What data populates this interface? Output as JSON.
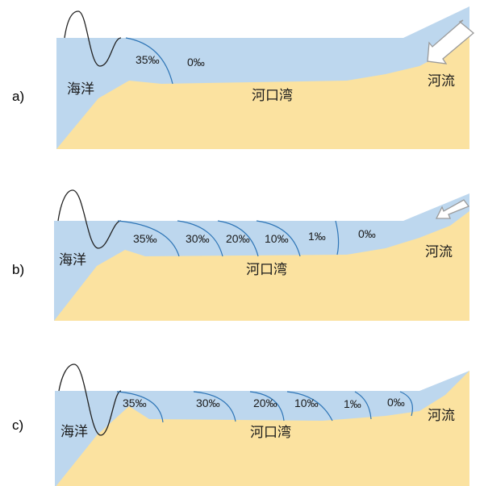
{
  "colors": {
    "water": "#bdd7ee",
    "sediment": "#fbe2a0",
    "isohaline": "#2e75b6",
    "wave": "#222222",
    "arrow_fill": "#ffffff",
    "arrow_stroke": "#9a9a9a"
  },
  "panels": [
    {
      "label": "a)",
      "ocean": "海洋",
      "estuary": "河口湾",
      "river": "河流",
      "salinity": [
        "35‰",
        "0‰"
      ]
    },
    {
      "label": "b)",
      "ocean": "海洋",
      "estuary": "河口湾",
      "river": "河流",
      "salinity": [
        "35‰",
        "30‰",
        "20‰",
        "10‰",
        "1‰",
        "0‰"
      ]
    },
    {
      "label": "c)",
      "ocean": "海洋",
      "estuary": "河口湾",
      "river": "河流",
      "salinity": [
        "35‰",
        "30‰",
        "20‰",
        "10‰",
        "1‰",
        "0‰"
      ]
    }
  ]
}
